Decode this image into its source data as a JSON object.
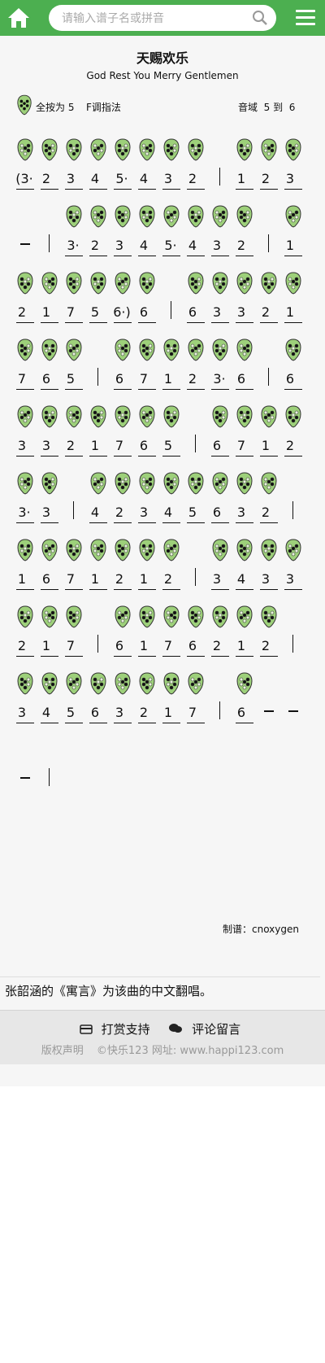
{
  "header": {
    "search_placeholder": "请输入谱子名或拼音",
    "home_icon": "home-icon",
    "search_icon": "search-icon",
    "menu_icon": "menu-icon",
    "accent_color": "#4caf50"
  },
  "song": {
    "title": "天赐欢乐",
    "subtitle": "God Rest You Merry Gentlemen",
    "key_label": "全按为",
    "key_note": "5",
    "fingering": "F调指法",
    "range_label": "音域",
    "range_low": "5",
    "range_to": "到",
    "range_high": "6"
  },
  "score": {
    "rows": [
      [
        "(3·",
        "2",
        "3",
        "4",
        "5·",
        "4",
        "3",
        "2",
        "|",
        "1",
        "2",
        "3"
      ],
      [
        "–",
        "|",
        "3·",
        "2",
        "3",
        "4",
        "5·",
        "4",
        "3",
        "2",
        "|",
        "1"
      ],
      [
        "2",
        "1",
        "7",
        "5",
        "6·)",
        "6",
        "|",
        "6",
        "3",
        "3",
        "2",
        "1"
      ],
      [
        "7",
        "6",
        "5",
        "|",
        "6",
        "7",
        "1",
        "2",
        "3·",
        "6",
        "|",
        "6"
      ],
      [
        "3",
        "3",
        "2",
        "1",
        "7",
        "6",
        "5",
        "|",
        "6",
        "7",
        "1",
        "2"
      ],
      [
        "3·",
        "3",
        "|",
        "4",
        "2",
        "3",
        "4",
        "5",
        "6",
        "3",
        "2",
        "|"
      ],
      [
        "1",
        "6",
        "7",
        "1",
        "2",
        "1",
        "2",
        "|",
        "3",
        "4",
        "3",
        "3"
      ],
      [
        "2",
        "1",
        "7",
        "|",
        "6",
        "1",
        "7",
        "6",
        "2",
        "1",
        "2",
        "|"
      ],
      [
        "3",
        "4",
        "5",
        "6",
        "3",
        "2",
        "1",
        "7",
        "|",
        "6",
        "–",
        "–"
      ],
      [
        "–",
        "|"
      ]
    ]
  },
  "credit": "制谱：cnoxygen",
  "note": "张韶涵的《寓言》为该曲的中文翻唱。",
  "footer": {
    "donate": "打赏支持",
    "comment": "评论留言",
    "copyright": "版权声明",
    "site": "©快乐123 网址: www.happi123.com"
  }
}
